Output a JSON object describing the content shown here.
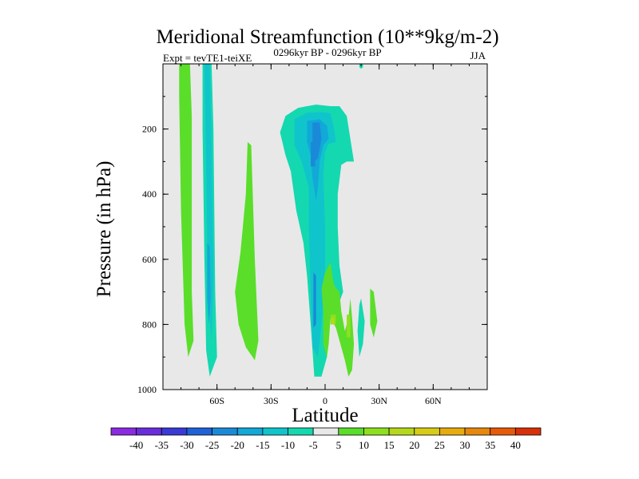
{
  "chart_data": {
    "type": "heatmap",
    "title": "Meridional Streamfunction (10**9kg/m-2)",
    "subtitle_left": "Expt = tevTE1-teiXE",
    "subtitle_center": "0296kyr BP - 0296kyr BP",
    "subtitle_right": "JJA",
    "xlabel": "Latitude",
    "ylabel": "Pressure (in hPa)",
    "xlim": [
      -90,
      90
    ],
    "ylim": [
      1000,
      0
    ],
    "x_ticks": [
      {
        "value": -60,
        "label": "60S"
      },
      {
        "value": -30,
        "label": "30S"
      },
      {
        "value": 0,
        "label": "0"
      },
      {
        "value": 30,
        "label": "30N"
      },
      {
        "value": 60,
        "label": "60N"
      }
    ],
    "y_ticks": [
      {
        "value": 200,
        "label": "200"
      },
      {
        "value": 400,
        "label": "400"
      },
      {
        "value": 600,
        "label": "600"
      },
      {
        "value": 800,
        "label": "800"
      },
      {
        "value": 1000,
        "label": "1000"
      }
    ],
    "background_color": "#e8e8e8",
    "colorbar": {
      "labels": [
        "-40",
        "-35",
        "-30",
        "-25",
        "-20",
        "-15",
        "-10",
        "-5",
        "5",
        "10",
        "15",
        "20",
        "25",
        "30",
        "35",
        "40"
      ],
      "colors": [
        "#8a2be2",
        "#6a2ddc",
        "#3a3ad6",
        "#1f62d8",
        "#1a8ad8",
        "#12a8d8",
        "#10c4cc",
        "#14d8b0",
        "#e8e8e8",
        "#5ade2a",
        "#8ee01e",
        "#b6d81a",
        "#d8cc16",
        "#e6ac0e",
        "#e6880c",
        "#e65a0a",
        "#d83008"
      ]
    },
    "regions": [
      {
        "level": 5,
        "color": "#5ade2a",
        "points": [
          [
            -81,
            0
          ],
          [
            -75,
            0
          ],
          [
            -74,
            160
          ],
          [
            -74,
            700
          ],
          [
            -73,
            850
          ],
          [
            -76,
            900
          ],
          [
            -78,
            800
          ],
          [
            -80,
            450
          ],
          [
            -81,
            100
          ]
        ]
      },
      {
        "level": -5,
        "color": "#14d8b0",
        "points": [
          [
            -68,
            0
          ],
          [
            -63,
            0
          ],
          [
            -62,
            200
          ],
          [
            -61,
            700
          ],
          [
            -60,
            900
          ],
          [
            -64,
            960
          ],
          [
            -66,
            880
          ],
          [
            -67,
            600
          ],
          [
            -68,
            200
          ]
        ]
      },
      {
        "level": -10,
        "color": "#10c4cc",
        "points": [
          [
            -67,
            0
          ],
          [
            -64,
            0
          ],
          [
            -63,
            250
          ],
          [
            -62,
            650
          ],
          [
            -63,
            850
          ],
          [
            -65,
            700
          ],
          [
            -66,
            300
          ]
        ]
      },
      {
        "level": -15,
        "color": "#12a8d8",
        "points": [
          [
            -65.5,
            550
          ],
          [
            -64,
            560
          ],
          [
            -63.5,
            720
          ],
          [
            -64.5,
            800
          ],
          [
            -65.5,
            720
          ]
        ]
      },
      {
        "level": 5,
        "color": "#5ade2a",
        "points": [
          [
            -43,
            240
          ],
          [
            -41,
            250
          ],
          [
            -39,
            600
          ],
          [
            -37,
            850
          ],
          [
            -39,
            910
          ],
          [
            -44,
            870
          ],
          [
            -48,
            800
          ],
          [
            -50,
            700
          ],
          [
            -47,
            580
          ],
          [
            -44,
            400
          ]
        ]
      },
      {
        "level": -5,
        "color": "#14d8b0",
        "points": [
          [
            -25,
            210
          ],
          [
            -22,
            160
          ],
          [
            -15,
            135
          ],
          [
            -5,
            125
          ],
          [
            3,
            130
          ],
          [
            8,
            130
          ],
          [
            12,
            160
          ],
          [
            14,
            230
          ],
          [
            16,
            300
          ],
          [
            12,
            300
          ],
          [
            9,
            310
          ],
          [
            7,
            400
          ],
          [
            7,
            500
          ],
          [
            8,
            620
          ],
          [
            10,
            700
          ],
          [
            6,
            760
          ],
          [
            2,
            790
          ],
          [
            1,
            900
          ],
          [
            -2,
            960
          ],
          [
            -6,
            960
          ],
          [
            -8,
            800
          ],
          [
            -10,
            650
          ],
          [
            -12,
            550
          ],
          [
            -16,
            450
          ],
          [
            -19,
            330
          ],
          [
            -22,
            280
          ]
        ]
      },
      {
        "level": -10,
        "color": "#10c4cc",
        "points": [
          [
            -17,
            170
          ],
          [
            -10,
            150
          ],
          [
            -2,
            148
          ],
          [
            3,
            152
          ],
          [
            5,
            200
          ],
          [
            6,
            240
          ],
          [
            2,
            245
          ],
          [
            0,
            270
          ],
          [
            -1,
            340
          ],
          [
            0,
            500
          ],
          [
            0,
            650
          ],
          [
            -2,
            800
          ],
          [
            -4,
            900
          ],
          [
            -7,
            870
          ],
          [
            -8,
            700
          ],
          [
            -9,
            500
          ],
          [
            -9,
            380
          ],
          [
            -13,
            300
          ],
          [
            -17,
            250
          ]
        ]
      },
      {
        "level": -15,
        "color": "#12a8d8",
        "points": [
          [
            -10,
            175
          ],
          [
            -3,
            170
          ],
          [
            1,
            190
          ],
          [
            2,
            230
          ],
          [
            -1,
            250
          ],
          [
            -3,
            300
          ],
          [
            -4,
            380
          ],
          [
            -5,
            420
          ],
          [
            -7,
            350
          ],
          [
            -8,
            280
          ],
          [
            -10,
            240
          ]
        ]
      },
      {
        "level": -20,
        "color": "#1a8ad8",
        "points": [
          [
            -7,
            180
          ],
          [
            -3,
            180
          ],
          [
            -2,
            230
          ],
          [
            -4,
            290
          ],
          [
            -6,
            300
          ],
          [
            -7,
            240
          ]
        ]
      },
      {
        "level": -20,
        "color": "#1a8ad8",
        "points": [
          [
            -8,
            240
          ],
          [
            -5.5,
            240
          ],
          [
            -5.5,
            315
          ],
          [
            -8,
            315
          ]
        ]
      },
      {
        "level": -20,
        "color": "#1a8ad8",
        "points": [
          [
            -6.5,
            640
          ],
          [
            -5,
            650
          ],
          [
            -5,
            800
          ],
          [
            -6.5,
            810
          ]
        ]
      },
      {
        "level": 5,
        "color": "#5ade2a",
        "points": [
          [
            -2,
            690
          ],
          [
            0,
            640
          ],
          [
            3,
            610
          ],
          [
            4,
            650
          ],
          [
            5,
            680
          ],
          [
            8,
            700
          ],
          [
            9,
            760
          ],
          [
            11,
            820
          ],
          [
            13,
            780
          ],
          [
            14,
            720
          ],
          [
            15,
            780
          ],
          [
            16,
            860
          ],
          [
            15,
            940
          ],
          [
            13,
            960
          ],
          [
            11,
            910
          ],
          [
            9,
            870
          ],
          [
            7,
            830
          ],
          [
            6,
            810
          ],
          [
            3,
            780
          ],
          [
            2,
            860
          ],
          [
            1,
            900
          ],
          [
            -1,
            860
          ],
          [
            -1,
            760
          ]
        ]
      },
      {
        "level": 10,
        "color": "#8ee01e",
        "points": [
          [
            3,
            770
          ],
          [
            6,
            770
          ],
          [
            6,
            800
          ],
          [
            3,
            800
          ]
        ]
      },
      {
        "level": 10,
        "color": "#8ee01e",
        "points": [
          [
            12,
            770
          ],
          [
            14,
            770
          ],
          [
            14,
            840
          ],
          [
            12,
            840
          ]
        ]
      },
      {
        "level": 15,
        "color": "#b6d81a",
        "points": [
          [
            3.5,
            780
          ],
          [
            5,
            780
          ],
          [
            5,
            800
          ],
          [
            3.5,
            800
          ]
        ]
      },
      {
        "level": -5,
        "color": "#14d8b0",
        "points": [
          [
            19,
            740
          ],
          [
            20,
            720
          ],
          [
            22,
            790
          ],
          [
            21,
            860
          ],
          [
            19,
            900
          ],
          [
            18,
            820
          ]
        ]
      },
      {
        "level": 5,
        "color": "#5ade2a",
        "points": [
          [
            25,
            690
          ],
          [
            27,
            700
          ],
          [
            29,
            790
          ],
          [
            27,
            840
          ],
          [
            25,
            800
          ]
        ]
      },
      {
        "level": -5,
        "color": "#14d8b0",
        "points": [
          [
            19,
            0
          ],
          [
            21,
            0
          ],
          [
            21,
            10
          ],
          [
            20,
            15
          ],
          [
            19,
            10
          ]
        ]
      }
    ]
  }
}
